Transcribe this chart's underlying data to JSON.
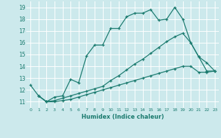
{
  "xlabel": "Humidex (Indice chaleur)",
  "bg_color": "#cce9ec",
  "line_color": "#1a7a6e",
  "grid_color": "#ffffff",
  "xlim": [
    -0.5,
    23.5
  ],
  "ylim": [
    10.5,
    19.5
  ],
  "yticks": [
    11,
    12,
    13,
    14,
    15,
    16,
    17,
    18,
    19
  ],
  "xticks": [
    0,
    1,
    2,
    3,
    4,
    5,
    6,
    7,
    8,
    9,
    10,
    11,
    12,
    13,
    14,
    15,
    16,
    17,
    18,
    19,
    20,
    21,
    22,
    23
  ],
  "line1_x": [
    0,
    1,
    2,
    3,
    4,
    5,
    6,
    7,
    8,
    9,
    10,
    11,
    12,
    13,
    14,
    15,
    16,
    17,
    18,
    19,
    20,
    21,
    22,
    23
  ],
  "line1_y": [
    12.4,
    11.5,
    11.0,
    11.4,
    11.5,
    12.9,
    12.6,
    14.9,
    15.8,
    15.8,
    17.2,
    17.2,
    18.2,
    18.5,
    18.5,
    18.8,
    17.9,
    18.0,
    19.0,
    18.0,
    16.0,
    14.8,
    14.3,
    13.6
  ],
  "line2_x": [
    1,
    2,
    3,
    4,
    5,
    6,
    7,
    8,
    9,
    10,
    11,
    12,
    13,
    14,
    15,
    16,
    17,
    18,
    19,
    20,
    21,
    22,
    23
  ],
  "line2_y": [
    11.5,
    11.0,
    11.1,
    11.3,
    11.5,
    11.7,
    11.9,
    12.1,
    12.3,
    12.8,
    13.2,
    13.7,
    14.2,
    14.6,
    15.1,
    15.6,
    16.1,
    16.5,
    16.8,
    16.0,
    14.8,
    13.6,
    13.6
  ],
  "line3_x": [
    1,
    2,
    3,
    4,
    5,
    6,
    7,
    8,
    9,
    10,
    11,
    12,
    13,
    14,
    15,
    16,
    17,
    18,
    19,
    20,
    21,
    22,
    23
  ],
  "line3_y": [
    11.5,
    11.0,
    11.0,
    11.1,
    11.2,
    11.4,
    11.6,
    11.8,
    12.0,
    12.2,
    12.4,
    12.6,
    12.8,
    13.0,
    13.2,
    13.4,
    13.6,
    13.8,
    14.0,
    14.0,
    13.5,
    13.5,
    13.6
  ]
}
